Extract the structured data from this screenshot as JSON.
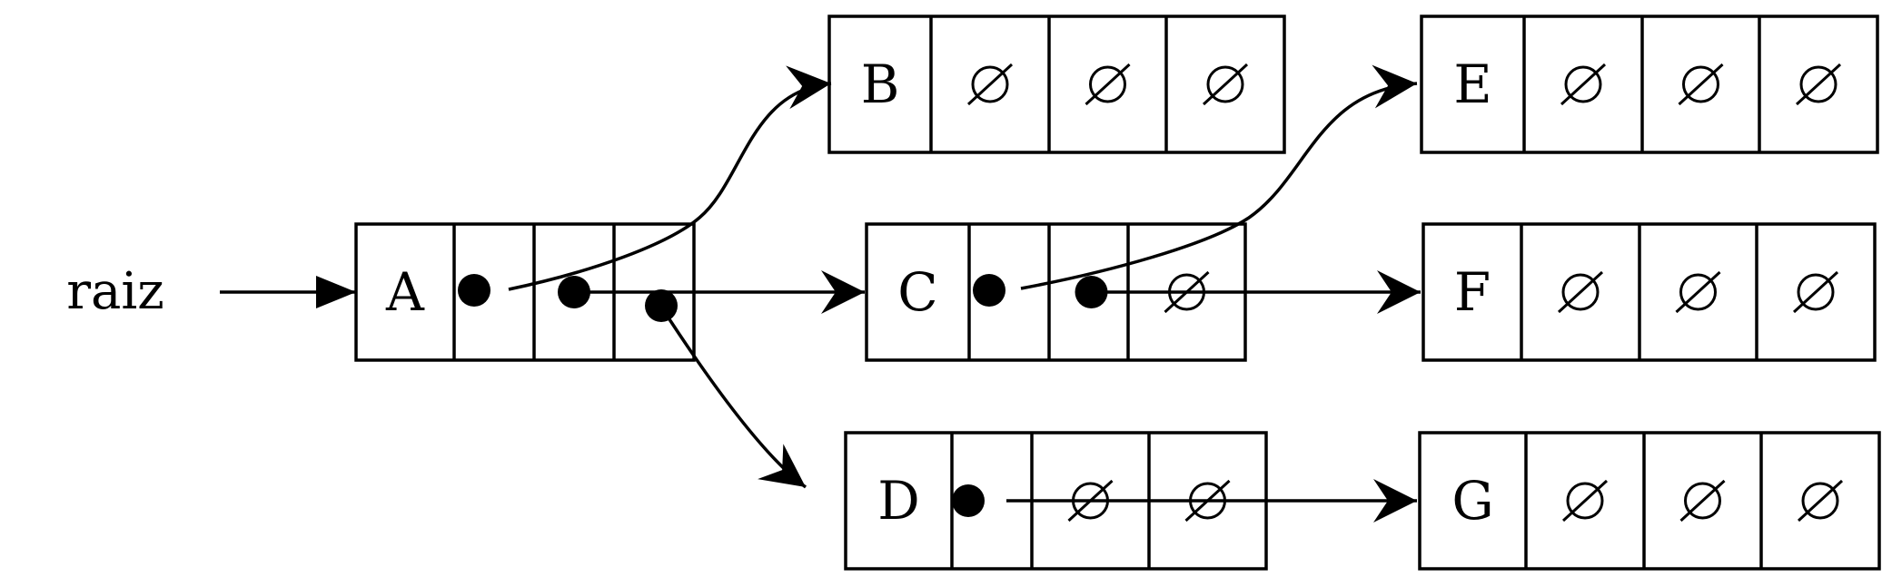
{
  "root_label": "raiz",
  "nodes": [
    {
      "id": "A",
      "label": "A",
      "slots": [
        "pointer",
        "pointer",
        "pointer"
      ]
    },
    {
      "id": "B",
      "label": "B",
      "slots": [
        "null",
        "null",
        "null"
      ]
    },
    {
      "id": "C",
      "label": "C",
      "slots": [
        "pointer",
        "pointer",
        "null"
      ]
    },
    {
      "id": "D",
      "label": "D",
      "slots": [
        "pointer",
        "null",
        "null"
      ]
    },
    {
      "id": "E",
      "label": "E",
      "slots": [
        "null",
        "null",
        "null"
      ]
    },
    {
      "id": "F",
      "label": "F",
      "slots": [
        "null",
        "null",
        "null"
      ]
    },
    {
      "id": "G",
      "label": "G",
      "slots": [
        "null",
        "null",
        "null"
      ]
    }
  ],
  "edges": [
    {
      "from": "raiz",
      "to": "A"
    },
    {
      "from": "A",
      "slot": 1,
      "to": "B"
    },
    {
      "from": "A",
      "slot": 2,
      "to": "C"
    },
    {
      "from": "A",
      "slot": 3,
      "to": "D"
    },
    {
      "from": "C",
      "slot": 1,
      "to": "E"
    },
    {
      "from": "C",
      "slot": 2,
      "to": "F"
    },
    {
      "from": "D",
      "slot": 1,
      "to": "G"
    }
  ]
}
